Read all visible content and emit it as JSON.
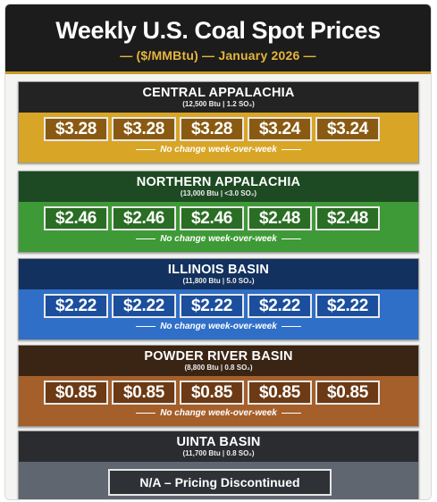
{
  "header": {
    "title": "Weekly U.S. Coal Spot Prices",
    "subtitle": "— ($/MMBtu) — January 2026 —"
  },
  "regions": [
    {
      "name": "CENTRAL APPALACHIA",
      "spec": "(12,500 Btu | 1.2 SO₂)",
      "prices": [
        "$3.28",
        "$3.28",
        "$3.28",
        "$3.24",
        "$3.24"
      ],
      "note": "No change week-over-week",
      "color": "#d8a526"
    },
    {
      "name": "NORTHERN APPALACHIA",
      "spec": "(13,000 Btu | <3.0 SO₂)",
      "prices": [
        "$2.46",
        "$2.46",
        "$2.46",
        "$2.48",
        "$2.48"
      ],
      "note": "No change week-over-week",
      "color": "#3e9a36"
    },
    {
      "name": "ILLINOIS BASIN",
      "spec": "(11,800 Btu | 5.0 SO₂)",
      "prices": [
        "$2.22",
        "$2.22",
        "$2.22",
        "$2.22",
        "$2.22"
      ],
      "note": "No change week-over-week",
      "color": "#2f6fc8"
    },
    {
      "name": "POWDER RIVER BASIN",
      "spec": "(8,800 Btu | 0.8 SO₂)",
      "prices": [
        "$0.85",
        "$0.85",
        "$0.85",
        "$0.85",
        "$0.85"
      ],
      "note": "No change week-over-week",
      "color": "#a55f2a"
    },
    {
      "name": "UINTA BASIN",
      "spec": "(11,700 Btu | 0.8 SO₂)",
      "status": "N/A – Pricing Discontinued",
      "color": "#5f6670"
    }
  ]
}
